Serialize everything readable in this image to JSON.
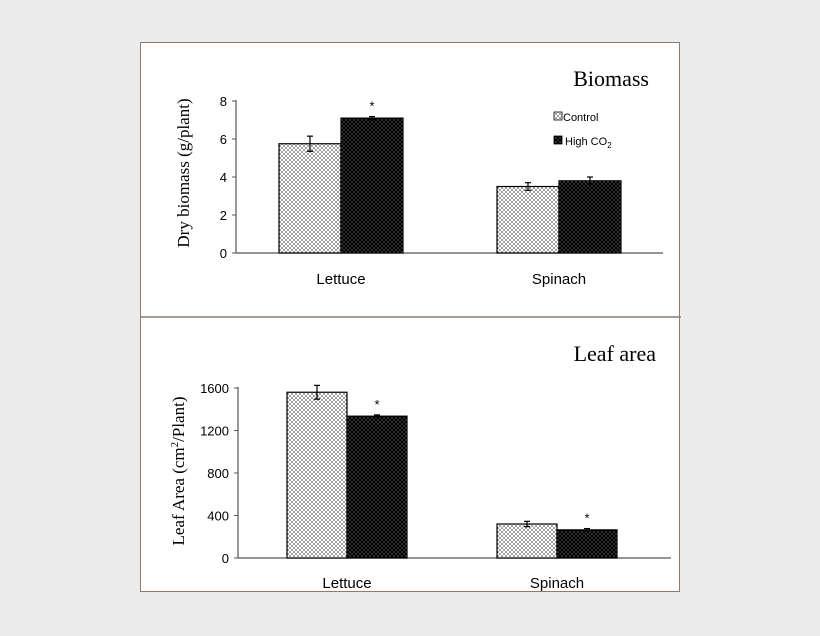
{
  "colors": {
    "page_bg": "#ececec",
    "frame_border": "#8c7b70",
    "axis": "#555555"
  },
  "legend": {
    "control_label": "Control",
    "highco2_label_main": "High CO",
    "highco2_label_sub": "2"
  },
  "chart_data": [
    {
      "type": "bar",
      "title": "Biomass",
      "ylabel": "Dry biomass (g/plant)",
      "xlabel": "",
      "categories": [
        "Lettuce",
        "Spinach"
      ],
      "ylim": [
        0,
        8
      ],
      "yticks": [
        0,
        2,
        4,
        6,
        8
      ],
      "series": [
        {
          "name": "Control",
          "values": [
            5.75,
            3.5
          ],
          "errors": [
            0.4,
            0.2
          ],
          "marks": [
            "",
            ""
          ]
        },
        {
          "name": "High CO2",
          "values": [
            7.1,
            3.8
          ],
          "errors": [
            0.08,
            0.2
          ],
          "marks": [
            "*",
            ""
          ]
        }
      ],
      "legend": "top-right",
      "grid": false
    },
    {
      "type": "bar",
      "title": "Leaf area",
      "ylabel_main": "Leaf Area (cm",
      "ylabel_sup": "2",
      "ylabel_tail": "/Plant)",
      "xlabel": "",
      "categories": [
        "Lettuce",
        "Spinach"
      ],
      "ylim": [
        0,
        1600
      ],
      "yticks": [
        0,
        400,
        800,
        1200,
        1600
      ],
      "series": [
        {
          "name": "Control",
          "values": [
            1560,
            320
          ],
          "errors": [
            65,
            25
          ],
          "marks": [
            "",
            ""
          ]
        },
        {
          "name": "High CO2",
          "values": [
            1335,
            265
          ],
          "errors": [
            12,
            12
          ],
          "marks": [
            "*",
            "*"
          ]
        }
      ],
      "grid": false
    }
  ]
}
